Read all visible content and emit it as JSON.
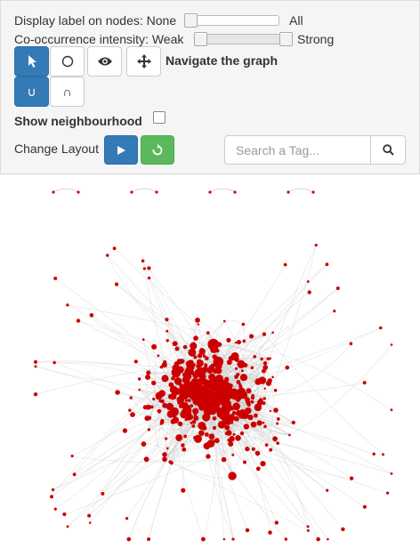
{
  "controls": {
    "display_label": {
      "label": "Display label on nodes: None",
      "max_label": "All",
      "value": 0
    },
    "cooccurrence": {
      "label": "Co-occurrence intensity: Weak",
      "max_label": "Strong",
      "value": 1
    },
    "toolbar": {
      "tools": [
        {
          "icon": "pointer-icon",
          "active": true
        },
        {
          "icon": "circle-select-icon",
          "active": false
        },
        {
          "icon": "eye-icon",
          "active": false
        },
        {
          "icon": "move-icon",
          "active": false
        }
      ],
      "mode_label": "Navigate the graph",
      "set_ops": [
        {
          "label": "∪",
          "active": true
        },
        {
          "label": "∩",
          "active": false
        }
      ]
    },
    "neighbourhood": {
      "label": "Show neighbourhood",
      "checked": false
    },
    "layout": {
      "label": "Change Layout"
    },
    "search": {
      "placeholder": "Search a Tag...",
      "value": ""
    }
  },
  "graph": {
    "node_color": "#cc0000",
    "edge_color": "#cccccc",
    "isolated_pairs": 4
  },
  "colors": {
    "primary": "#337ab7",
    "success": "#5cb85c",
    "panel_bg": "#f5f5f5"
  }
}
